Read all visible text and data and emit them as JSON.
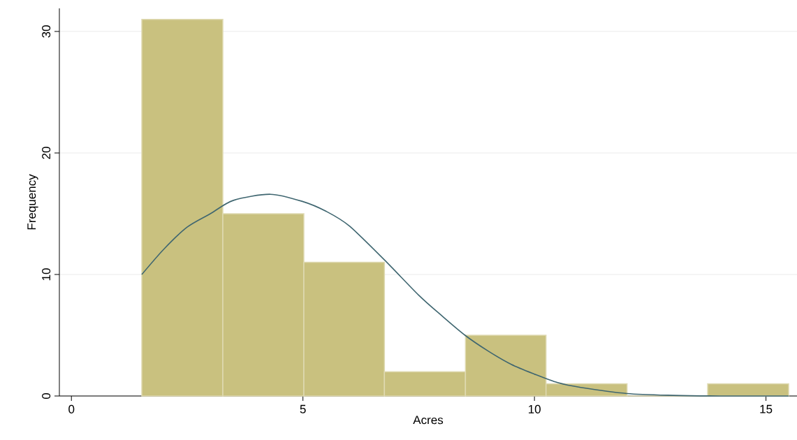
{
  "chart_data": {
    "type": "histogram",
    "xlabel": "Acres",
    "ylabel": "Frequency",
    "bins": [
      1.52,
      3.27,
      5.02,
      6.76,
      8.51,
      10.25,
      12.0,
      13.74,
      15.49
    ],
    "values": [
      31,
      15,
      11,
      2,
      5,
      1,
      0,
      1
    ],
    "color": "#c9c17f",
    "series": [
      {
        "type": "line",
        "color": "#3f6670",
        "x": [
          1.52,
          2.0,
          2.5,
          3.0,
          3.5,
          4.3,
          5.0,
          5.5,
          6.0,
          6.76,
          7.5,
          8.0,
          8.5,
          9.0,
          9.5,
          10.0,
          10.5,
          11.0,
          12.0,
          13.0,
          14.0,
          15.49
        ],
        "values": [
          10.0,
          12.1,
          13.9,
          15.0,
          16.1,
          16.6,
          16.0,
          15.2,
          14.0,
          11.2,
          8.3,
          6.6,
          5.0,
          3.7,
          2.6,
          1.8,
          1.1,
          0.7,
          0.2,
          0.05,
          0.0,
          0.0
        ]
      }
    ],
    "xlim": [
      -0.26,
      15.67
    ],
    "ylim": [
      0,
      31.9
    ],
    "xticks": [
      0,
      5,
      10,
      15
    ],
    "yticks": [
      0,
      10,
      20,
      30
    ],
    "grid": "y"
  }
}
